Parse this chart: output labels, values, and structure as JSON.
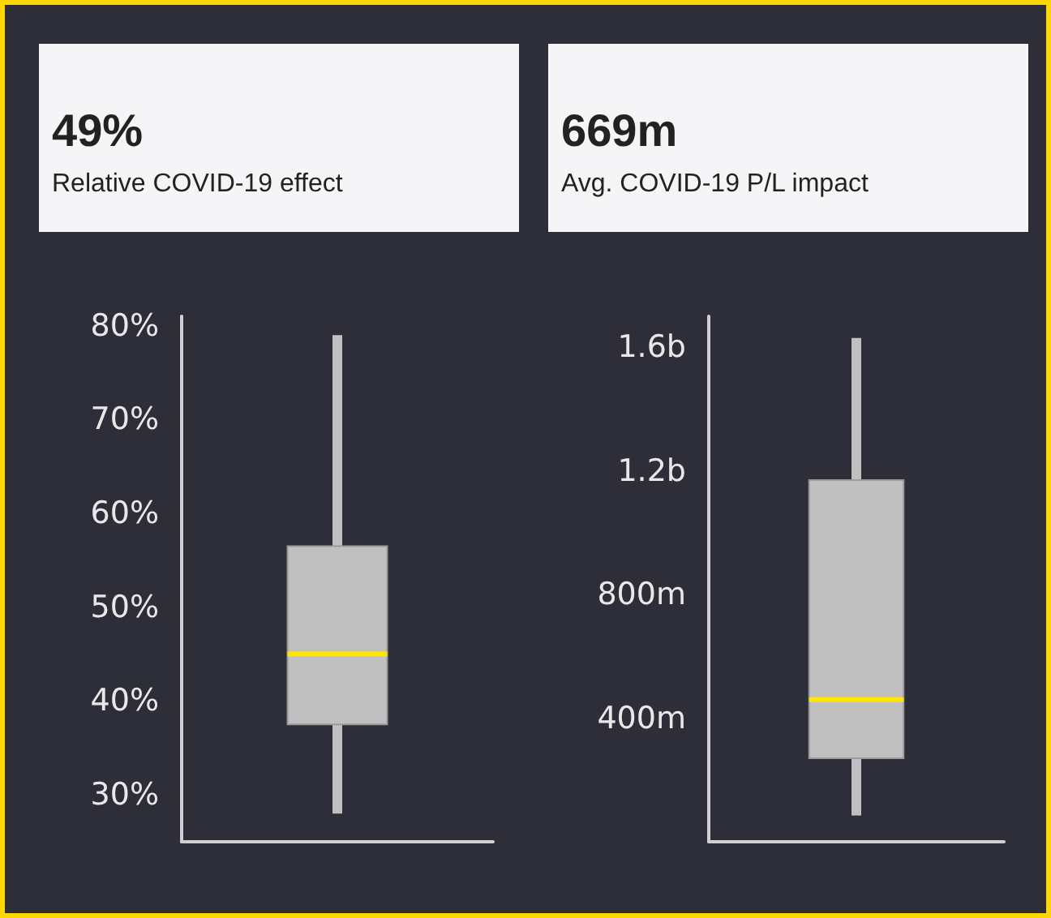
{
  "chart_data": [
    {
      "type": "other",
      "title": "49%",
      "subtitle": "Relative COVID-19 effect"
    },
    {
      "type": "other",
      "title": "669m",
      "subtitle": "Avg. COVID-19 P/L impact"
    },
    {
      "type": "box",
      "categories": [
        null
      ],
      "grid": false,
      "ylim": [
        25,
        81
      ],
      "yticks": [
        {
          "value": 30,
          "label": "30%"
        },
        {
          "value": 40,
          "label": "40%"
        },
        {
          "value": 50,
          "label": "50%"
        },
        {
          "value": 60,
          "label": "60%"
        },
        {
          "value": 70,
          "label": "70%"
        },
        {
          "value": 80,
          "label": "80%"
        }
      ],
      "series": [
        {
          "color": "#c0c0c0",
          "boxes": [
            {
              "low": 28,
              "q1": 37.5,
              "median": 45,
              "q3": 56.5,
              "high": 79
            }
          ]
        }
      ]
    },
    {
      "type": "box",
      "categories": [
        null
      ],
      "grid": false,
      "ylim": [
        0,
        1700000000
      ],
      "yticks": [
        {
          "value": 400000000,
          "label": "400m"
        },
        {
          "value": 800000000,
          "label": "800m"
        },
        {
          "value": 1200000000,
          "label": "1.2b"
        },
        {
          "value": 1600000000,
          "label": "1.6b"
        }
      ],
      "series": [
        {
          "color": "#c0c0c0",
          "boxes": [
            {
              "low": 85000000,
              "q1": 270000000,
              "median": 460000000,
              "q3": 1170000000,
              "high": 1630000000
            }
          ]
        }
      ]
    }
  ]
}
